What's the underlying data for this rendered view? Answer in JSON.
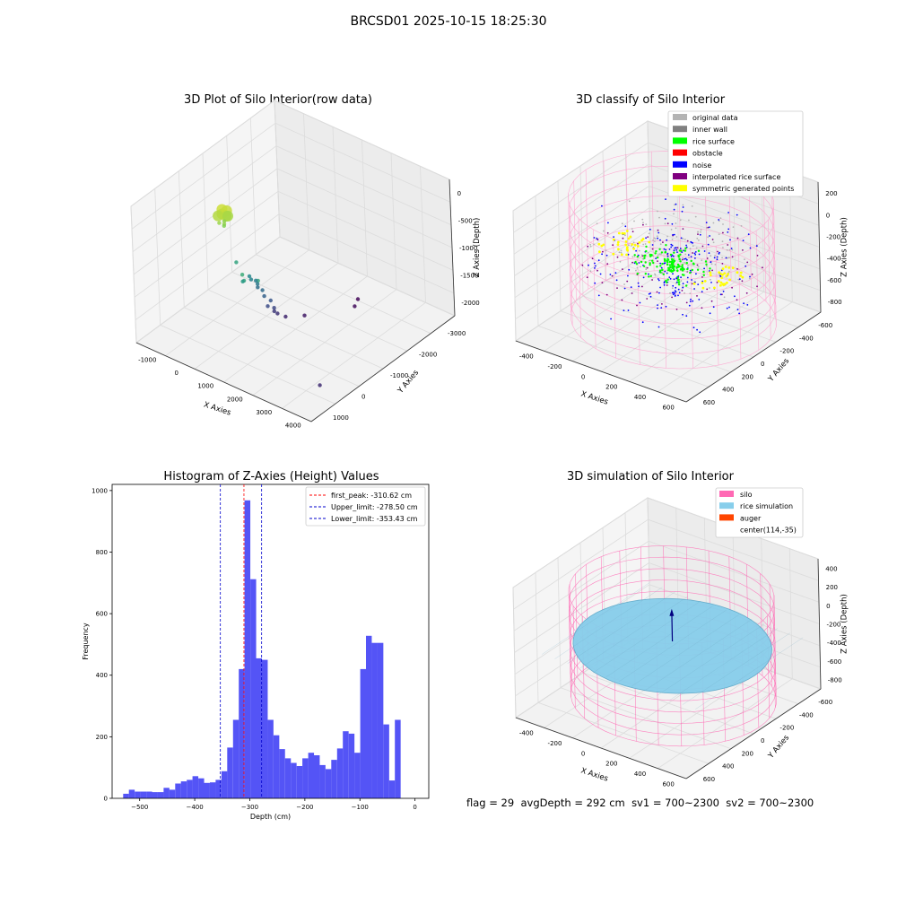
{
  "figure": {
    "suptitle": "BRCSD01 2025-10-15 18:25:30",
    "footer": {
      "flag": "flag = 29",
      "avg_depth": "avgDepth = 292 cm",
      "sv1": "sv1 = 700~2300",
      "sv2": "sv2 = 700~2300"
    }
  },
  "chart_data": [
    {
      "type": "scatter",
      "title": "3D Plot of Silo Interior(row data)",
      "xlabel": "X Axies",
      "ylabel": "Y Axies",
      "zlabel": "Z Axies (Depth)",
      "x_ticks": [
        "-1000",
        "0",
        "1000",
        "2000",
        "3000",
        "4000"
      ],
      "y_ticks": [
        "1000",
        "0",
        "-1000",
        "-2000",
        "-3000"
      ],
      "z_ticks": [
        "0",
        "-500",
        "-1000",
        "-1500",
        "-2000"
      ],
      "xlim": [
        -1300,
        4300
      ],
      "ylim": [
        -3300,
        1300
      ],
      "zlim": [
        -2500,
        100
      ],
      "colormap": "viridis",
      "points": [
        {
          "x": 300,
          "y": 0,
          "z": -100
        },
        {
          "x": 350,
          "y": 50,
          "z": -150
        },
        {
          "x": 400,
          "y": -50,
          "z": -120
        },
        {
          "x": 250,
          "y": 80,
          "z": -200
        },
        {
          "x": 450,
          "y": 20,
          "z": -180
        },
        {
          "x": 380,
          "y": -100,
          "z": -250
        },
        {
          "x": 320,
          "y": 120,
          "z": -300
        },
        {
          "x": 420,
          "y": 60,
          "z": -320
        },
        {
          "x": 300,
          "y": -60,
          "z": -350
        },
        {
          "x": 350,
          "y": 0,
          "z": -400
        },
        {
          "x": 1300,
          "y": 400,
          "z": -900
        },
        {
          "x": 1350,
          "y": 400,
          "z": -1000
        },
        {
          "x": 1700,
          "y": 300,
          "z": -950
        },
        {
          "x": 1200,
          "y": 300,
          "z": -1100
        },
        {
          "x": 700,
          "y": 0,
          "z": -1000
        },
        {
          "x": 900,
          "y": -200,
          "z": -1300
        },
        {
          "x": 950,
          "y": -200,
          "z": -1350
        },
        {
          "x": 1000,
          "y": -300,
          "z": -1400
        },
        {
          "x": 1050,
          "y": -300,
          "z": -1450
        },
        {
          "x": 1000,
          "y": -350,
          "z": -1550
        },
        {
          "x": 1100,
          "y": -400,
          "z": -1600
        },
        {
          "x": 1150,
          "y": -400,
          "z": -1700
        },
        {
          "x": 1250,
          "y": -500,
          "z": -1800
        },
        {
          "x": 1200,
          "y": -450,
          "z": -1900
        },
        {
          "x": 1300,
          "y": -550,
          "z": -1950
        },
        {
          "x": 1250,
          "y": -600,
          "z": -2050
        },
        {
          "x": 1300,
          "y": -650,
          "z": -2100
        },
        {
          "x": 1400,
          "y": -800,
          "z": -2200
        },
        {
          "x": 1600,
          "y": -1200,
          "z": -2300
        },
        {
          "x": 2200,
          "y": -2200,
          "z": -2400
        },
        {
          "x": 2000,
          "y": -2500,
          "z": -2450
        },
        {
          "x": 4000,
          "y": 700,
          "z": -2150
        }
      ]
    },
    {
      "type": "scatter",
      "title": "3D classify of Silo Interior",
      "xlabel": "X Axies",
      "ylabel": "Y Axies",
      "zlabel": "Z Axies (Depth)",
      "x_ticks": [
        "-400",
        "-200",
        "0",
        "200",
        "400",
        "600"
      ],
      "y_ticks": [
        "600",
        "400",
        "200",
        "0",
        "-200",
        "-400",
        "-600"
      ],
      "z_ticks": [
        "200",
        "0",
        "-200",
        "-400",
        "-600",
        "-800"
      ],
      "xlim": [
        -500,
        700
      ],
      "ylim": [
        -700,
        700
      ],
      "zlim": [
        -900,
        300
      ],
      "legend": [
        {
          "label": "original data",
          "color": "#b3b3b3"
        },
        {
          "label": "inner wall",
          "color": "#808080"
        },
        {
          "label": "rice surface",
          "color": "#00ff00"
        },
        {
          "label": "obstacle",
          "color": "#ff0000"
        },
        {
          "label": "noise",
          "color": "#0000ff"
        },
        {
          "label": "interpolated rice surface",
          "color": "#800080"
        },
        {
          "label": "symmetric generated points",
          "color": "#ffff00"
        }
      ],
      "silo": {
        "center": [
          114,
          -35
        ],
        "radius": 600,
        "z_top": 250,
        "z_bottom": -850
      },
      "surface_depth": -300
    },
    {
      "type": "bar",
      "title": "Histogram of Z-Axies (Height) Values",
      "xlabel": "Depth (cm)",
      "ylabel": "Frequency",
      "x_ticks": [
        -500,
        -400,
        -300,
        -200,
        -100,
        0
      ],
      "y_ticks": [
        0,
        200,
        400,
        600,
        800,
        1000
      ],
      "xlim": [
        -550,
        25
      ],
      "ylim": [
        0,
        1020
      ],
      "bin_width": 10.5,
      "bins_start": -530,
      "values": [
        15,
        28,
        22,
        22,
        22,
        20,
        20,
        34,
        28,
        48,
        55,
        60,
        72,
        65,
        50,
        52,
        60,
        88,
        165,
        255,
        420,
        968,
        712,
        455,
        450,
        255,
        205,
        160,
        130,
        115,
        105,
        130,
        148,
        140,
        108,
        95,
        125,
        162,
        218,
        210,
        148,
        420,
        528,
        505,
        505,
        240,
        58,
        255
      ],
      "bar_color": "#4b4bf5",
      "lines": [
        {
          "label": "first_peak: -310.62 cm",
          "x": -310.62,
          "color": "#ff0000"
        },
        {
          "label": "Upper_limit: -278.50 cm",
          "x": -278.5,
          "color": "#0000cc"
        },
        {
          "label": "Lower_limit: -353.43 cm",
          "x": -353.43,
          "color": "#0000cc"
        }
      ],
      "legend_position": "top-right"
    },
    {
      "type": "surface",
      "title": "3D simulation of Silo Interior",
      "xlabel": "X Axies",
      "ylabel": "Y Axies",
      "zlabel": "Z Axies (Depth)",
      "x_ticks": [
        "-400",
        "-200",
        "0",
        "200",
        "400",
        "600"
      ],
      "y_ticks": [
        "600",
        "400",
        "200",
        "0",
        "-200",
        "-400",
        "-600"
      ],
      "z_ticks": [
        "400",
        "200",
        "0",
        "-200",
        "-400",
        "-600",
        "-800"
      ],
      "xlim": [
        -500,
        700
      ],
      "ylim": [
        -700,
        700
      ],
      "zlim": [
        -900,
        500
      ],
      "legend": [
        {
          "label": "silo",
          "color": "#ff69b4"
        },
        {
          "label": "rice simulation",
          "color": "#87ceeb"
        },
        {
          "label": "auger",
          "color": "#ff4500"
        },
        {
          "label": "center(114,-35)",
          "color": ""
        }
      ],
      "silo": {
        "center": [
          114,
          -35
        ],
        "radius": 600,
        "z_top": 250,
        "z_bottom": -850
      },
      "surface_depth": -300
    }
  ]
}
